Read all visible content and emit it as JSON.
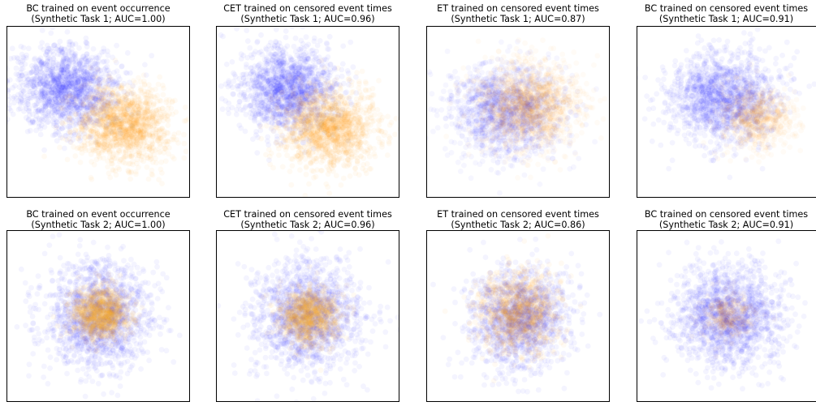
{
  "figure": {
    "colors": {
      "class_a": "#1f1fff",
      "class_b": "#ffa31a"
    }
  },
  "chart_data": [
    {
      "type": "scatter",
      "title_line1": "BC trained on event occurrence",
      "title_line2": "(Synthetic Task 1; AUC=1.00)",
      "xlabel": "",
      "ylabel": "",
      "grid": false,
      "xlim": [
        -4,
        4
      ],
      "ylim": [
        -4,
        4
      ],
      "ticks_visible": false,
      "series": [
        {
          "color": "#1f1fff",
          "center": [
            -1.4,
            1.1
          ],
          "spread": [
            1.1,
            0.95
          ],
          "count": 1500,
          "alpha": 0.05
        },
        {
          "color": "#ffa31a",
          "center": [
            1.1,
            -0.6
          ],
          "spread": [
            1.0,
            0.9
          ],
          "count": 1500,
          "alpha": 0.05
        }
      ]
    },
    {
      "type": "scatter",
      "title_line1": "CET trained on censored event times",
      "title_line2": "(Synthetic Task 1; AUC=0.96)",
      "xlabel": "",
      "ylabel": "",
      "grid": false,
      "xlim": [
        -4,
        4
      ],
      "ylim": [
        -4,
        4
      ],
      "ticks_visible": false,
      "series": [
        {
          "color": "#1f1fff",
          "center": [
            -0.9,
            1.1
          ],
          "spread": [
            1.05,
            0.95
          ],
          "count": 1500,
          "alpha": 0.05
        },
        {
          "color": "#ffa31a",
          "center": [
            0.9,
            -0.7
          ],
          "spread": [
            1.05,
            0.95
          ],
          "count": 1500,
          "alpha": 0.05
        }
      ]
    },
    {
      "type": "scatter",
      "title_line1": "ET trained on censored event times",
      "title_line2": "(Synthetic Task 1; AUC=0.87)",
      "xlabel": "",
      "ylabel": "",
      "grid": false,
      "xlim": [
        -4,
        4
      ],
      "ylim": [
        -4,
        4
      ],
      "ticks_visible": false,
      "series": [
        {
          "color": "#1f1fff",
          "center": [
            -0.5,
            0.0
          ],
          "spread": [
            1.25,
            1.1
          ],
          "count": 1500,
          "alpha": 0.04
        },
        {
          "color": "#ffa31a",
          "center": [
            0.5,
            0.3
          ],
          "spread": [
            1.1,
            1.0
          ],
          "count": 1500,
          "alpha": 0.04
        }
      ]
    },
    {
      "type": "scatter",
      "title_line1": "BC trained on censored event times",
      "title_line2": "(Synthetic Task 1; AUC=0.91)",
      "xlabel": "",
      "ylabel": "",
      "grid": false,
      "xlim": [
        -4,
        4
      ],
      "ylim": [
        -4,
        4
      ],
      "ticks_visible": false,
      "series": [
        {
          "color": "#1f1fff",
          "center": [
            -0.2,
            0.7
          ],
          "spread": [
            1.2,
            1.05
          ],
          "count": 1500,
          "alpha": 0.05
        },
        {
          "color": "#ffa31a",
          "center": [
            1.3,
            -0.3
          ],
          "spread": [
            0.8,
            0.75
          ],
          "count": 700,
          "alpha": 0.04
        }
      ]
    },
    {
      "type": "scatter",
      "title_line1": "BC trained on event occurrence",
      "title_line2": "(Synthetic Task 2; AUC=1.00)",
      "xlabel": "",
      "ylabel": "",
      "grid": false,
      "xlim": [
        -4,
        4
      ],
      "ylim": [
        -4,
        4
      ],
      "ticks_visible": false,
      "series": [
        {
          "color": "#1f1fff",
          "center": [
            0.0,
            0.0
          ],
          "spread": [
            1.2,
            1.25
          ],
          "count": 1500,
          "alpha": 0.05
        },
        {
          "color": "#ffa31a",
          "center": [
            0.1,
            0.1
          ],
          "spread": [
            0.6,
            0.6
          ],
          "count": 1100,
          "alpha": 0.06
        }
      ]
    },
    {
      "type": "scatter",
      "title_line1": "CET trained on censored event times",
      "title_line2": "(Synthetic Task 2; AUC=0.96)",
      "xlabel": "",
      "ylabel": "",
      "grid": false,
      "xlim": [
        -4,
        4
      ],
      "ylim": [
        -4,
        4
      ],
      "ticks_visible": false,
      "series": [
        {
          "color": "#1f1fff",
          "center": [
            0.0,
            0.0
          ],
          "spread": [
            1.2,
            1.25
          ],
          "count": 1500,
          "alpha": 0.05
        },
        {
          "color": "#ffa31a",
          "center": [
            0.1,
            0.0
          ],
          "spread": [
            0.65,
            0.65
          ],
          "count": 1000,
          "alpha": 0.06
        }
      ]
    },
    {
      "type": "scatter",
      "title_line1": "ET trained on censored event times",
      "title_line2": "(Synthetic Task 2; AUC=0.86)",
      "xlabel": "",
      "ylabel": "",
      "grid": false,
      "xlim": [
        -4,
        4
      ],
      "ylim": [
        -4,
        4
      ],
      "ticks_visible": false,
      "series": [
        {
          "color": "#1f1fff",
          "center": [
            0.0,
            -0.1
          ],
          "spread": [
            1.1,
            1.2
          ],
          "count": 1400,
          "alpha": 0.05
        },
        {
          "color": "#ffa31a",
          "center": [
            0.0,
            0.2
          ],
          "spread": [
            0.85,
            0.95
          ],
          "count": 1100,
          "alpha": 0.05
        }
      ]
    },
    {
      "type": "scatter",
      "title_line1": "BC trained on censored event times",
      "title_line2": "(Synthetic Task 2; AUC=0.91)",
      "xlabel": "",
      "ylabel": "",
      "grid": false,
      "xlim": [
        -4,
        4
      ],
      "ylim": [
        -4,
        4
      ],
      "ticks_visible": false,
      "series": [
        {
          "color": "#1f1fff",
          "center": [
            0.0,
            0.0
          ],
          "spread": [
            1.15,
            1.2
          ],
          "count": 1600,
          "alpha": 0.05
        },
        {
          "color": "#ffa31a",
          "center": [
            0.0,
            0.0
          ],
          "spread": [
            0.55,
            0.55
          ],
          "count": 350,
          "alpha": 0.04
        }
      ]
    }
  ]
}
